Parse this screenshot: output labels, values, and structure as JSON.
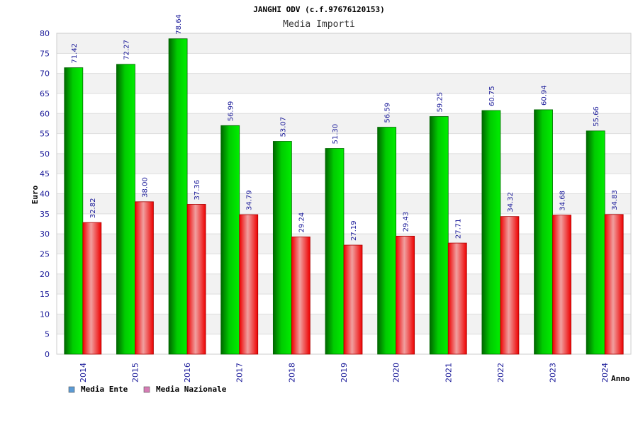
{
  "chart_data": {
    "type": "bar",
    "title": "JANGHI ODV (c.f.97676120153)",
    "subtitle": "Media Importi",
    "xlabel": "Anno",
    "ylabel": "Euro",
    "ylim": [
      0,
      80
    ],
    "yticks": [
      0,
      5,
      10,
      15,
      20,
      25,
      30,
      35,
      40,
      45,
      50,
      55,
      60,
      65,
      70,
      75,
      80
    ],
    "grid": true,
    "legend_position": "bottom-left",
    "categories": [
      "2014",
      "2015",
      "2016",
      "2017",
      "2018",
      "2019",
      "2020",
      "2021",
      "2022",
      "2023",
      "2024"
    ],
    "series": [
      {
        "name": "Media Ente",
        "color": "#00bb00",
        "legend_color": "#5b9bd5",
        "values": [
          71.42,
          72.27,
          78.64,
          56.99,
          53.07,
          51.3,
          56.59,
          59.25,
          60.75,
          60.94,
          55.66
        ],
        "labels": [
          "71.42",
          "72.27",
          "78.64",
          "56.99",
          "53.07",
          "51.30",
          "56.59",
          "59.25",
          "60.75",
          "60.94",
          "55.66"
        ]
      },
      {
        "name": "Media Nazionale",
        "color": "#ee1111",
        "legend_color": "#d67cb5",
        "values": [
          32.82,
          38.0,
          37.36,
          34.79,
          29.24,
          27.19,
          29.43,
          27.71,
          34.32,
          34.68,
          34.83
        ],
        "labels": [
          "32.82",
          "38.00",
          "37.36",
          "34.79",
          "29.24",
          "27.19",
          "29.43",
          "27.71",
          "34.32",
          "34.68",
          "34.83"
        ]
      }
    ]
  }
}
